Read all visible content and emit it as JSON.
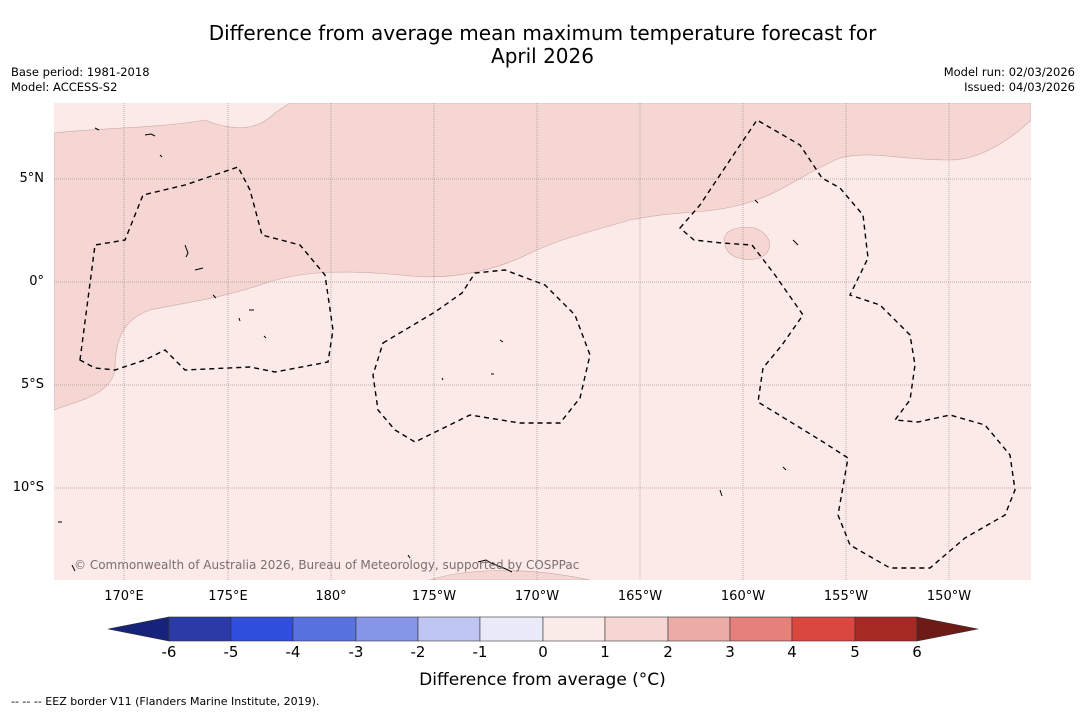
{
  "title": {
    "line1": "Difference from average mean maximum temperature forecast for",
    "line2": "April 2026"
  },
  "meta": {
    "base_period": "Base period: 1981-2018",
    "model": "Model: ACCESS-S2",
    "model_run": "Model run: 02/03/2026",
    "issued": "Issued: 04/03/2026"
  },
  "map": {
    "lat_labels": [
      "5°N",
      "0°",
      "5°S",
      "10°S"
    ],
    "lon_labels": [
      "170°E",
      "175°E",
      "180°",
      "175°W",
      "170°W",
      "165°W",
      "160°W",
      "155°W",
      "150°W"
    ],
    "copyright": "© Commonwealth of Australia 2026, Bureau of Meteorology, supported by COSPPac",
    "colors": {
      "background_0_1": "#fbeae8",
      "band_1_2": "#f5d6d3",
      "border": "#000000",
      "grid": "#777777"
    }
  },
  "colorbar": {
    "label": "Difference from average (°C)",
    "ticks": [
      "-6",
      "-5",
      "-4",
      "-3",
      "-2",
      "-1",
      "0",
      "1",
      "2",
      "3",
      "4",
      "5",
      "6"
    ],
    "colors": [
      "#16237a",
      "#2a3ba8",
      "#2f4fdc",
      "#5872e0",
      "#8596e8",
      "#c0c6f3",
      "#e9ebfb",
      "#fcece9",
      "#f5d6d3",
      "#ecaca5",
      "#e5807a",
      "#d9473f",
      "#a62a23",
      "#6e1a17"
    ]
  },
  "legend": {
    "eez": "--  --  -- EEZ border V11 (Flanders Marine Institute, 2019)."
  }
}
